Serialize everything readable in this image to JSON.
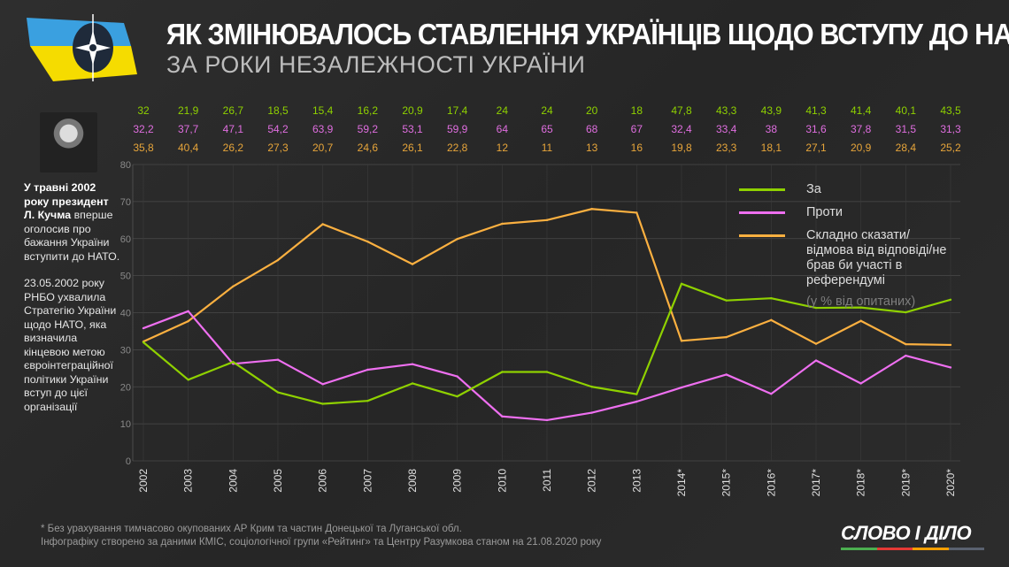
{
  "header": {
    "title": "ЯК ЗМІНЮВАЛОСЬ СТАВЛЕННЯ УКРАЇНЦІВ ЩОДО ВСТУПУ ДО НАТО",
    "subtitle": "ЗА РОКИ НЕЗАЛЕЖНОСТІ УКРАЇНИ",
    "logo": "nato-compass-icon"
  },
  "sidebar": {
    "p1_bold": "У травні 2002 року президент Л. Кучма",
    "p1_rest": " вперше оголосив про бажання України вступити до НАТО.",
    "p2": "23.05.2002 року РНБО ухвалила Стратегію України щодо НАТО, яка визначила кінцевою метою євроінтеграційної політики України вступ до цієї організації"
  },
  "legend": {
    "items": [
      "За",
      "Проти",
      "Складно сказати/відмова від відповіді/не брав би участі в референдумі"
    ],
    "note": "(у % від опитаних)"
  },
  "chart_data": {
    "type": "line",
    "categories": [
      "2002",
      "2003",
      "2004",
      "2005",
      "2006",
      "2007",
      "2008",
      "2009",
      "2010",
      "2011",
      "2012",
      "2013",
      "2014*",
      "2015*",
      "2016*",
      "2017*",
      "2018*",
      "2019*",
      "2020*"
    ],
    "ylim": [
      0,
      80
    ],
    "yticks": [
      0,
      10,
      20,
      30,
      40,
      50,
      60,
      70,
      80
    ],
    "grid": true,
    "legend_position": "top-right",
    "series": [
      {
        "name": "За",
        "line_color": "#8fd100",
        "label_color": "#8fd100",
        "labels": [
          "32",
          "21,9",
          "26,7",
          "18,5",
          "15,4",
          "16,2",
          "20,9",
          "17,4",
          "24",
          "24",
          "20",
          "18",
          "47,8",
          "43,3",
          "43,9",
          "41,3",
          "41,4",
          "40,1",
          "43,5"
        ],
        "values": [
          32,
          21.9,
          26.7,
          18.5,
          15.4,
          16.2,
          20.9,
          17.4,
          24,
          24,
          20,
          18,
          47.8,
          43.3,
          43.9,
          41.3,
          41.4,
          40.1,
          43.5
        ]
      },
      {
        "name": "Проти",
        "line_color": "#ee6ff0",
        "label_color": "#e7a53a",
        "labels": [
          "35,8",
          "40,4",
          "26,2",
          "27,3",
          "20,7",
          "24,6",
          "26,1",
          "22,8",
          "12",
          "11",
          "13",
          "16",
          "19,8",
          "23,3",
          "18,1",
          "27,1",
          "20,9",
          "28,4",
          "25,2"
        ],
        "values": [
          35.8,
          40.4,
          26.2,
          27.3,
          20.7,
          24.6,
          26.1,
          22.8,
          12,
          11,
          13,
          16,
          19.8,
          23.3,
          18.1,
          27.1,
          20.9,
          28.4,
          25.2
        ]
      },
      {
        "name": "Складно сказати/відмова від відповіді/не брав би участі в референдумі",
        "line_color": "#fbb040",
        "label_color": "#e06ee0",
        "labels": [
          "32,2",
          "37,7",
          "47,1",
          "54,2",
          "63,9",
          "59,2",
          "53,1",
          "59,9",
          "64",
          "65",
          "68",
          "67",
          "32,4",
          "33,4",
          "38",
          "31,6",
          "37,8",
          "31,5",
          "31,3"
        ],
        "values": [
          32.2,
          37.7,
          47.1,
          54.2,
          63.9,
          59.2,
          53.1,
          59.9,
          64,
          65,
          68,
          67,
          32.4,
          33.4,
          38,
          31.6,
          37.8,
          31.5,
          31.3
        ]
      }
    ],
    "label_row_order": [
      0,
      2,
      1
    ]
  },
  "footer": {
    "note": "* Без урахування тимчасово окупованих АР Крим та частин Донецької та Луганської обл.",
    "source": "Інфографіку створено за даними КМІС, соціологічної групи «Рейтинг» та Центру Разумкова станом на 21.08.2020 року"
  },
  "brand": {
    "name": "СЛОВО І ДІЛО",
    "colors": [
      "#4caf50",
      "#e53935",
      "#ffa000",
      "#5a6270"
    ]
  }
}
